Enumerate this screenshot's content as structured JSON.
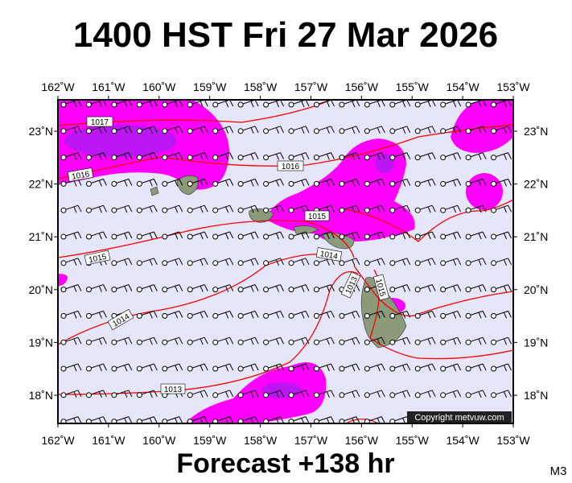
{
  "title": "1400 HST Fri 27 Mar 2026",
  "lon_labels": [
    "162˚W",
    "161˚W",
    "160˚W",
    "159˚W",
    "158˚W",
    "157˚W",
    "156˚W",
    "155˚W",
    "154˚W",
    "153˚W"
  ],
  "lat_labels": [
    "23˚N",
    "22˚N",
    "21˚N",
    "20˚N",
    "19˚N",
    "18˚N"
  ],
  "isobar_labels": [
    "1017",
    "1016",
    "1016",
    "1015",
    "1015",
    "1014",
    "1014",
    "1013",
    "1013",
    "1015"
  ],
  "copyright": "Copyright metvuw.com",
  "footer": "Forecast +138 hr",
  "code": "M3"
}
